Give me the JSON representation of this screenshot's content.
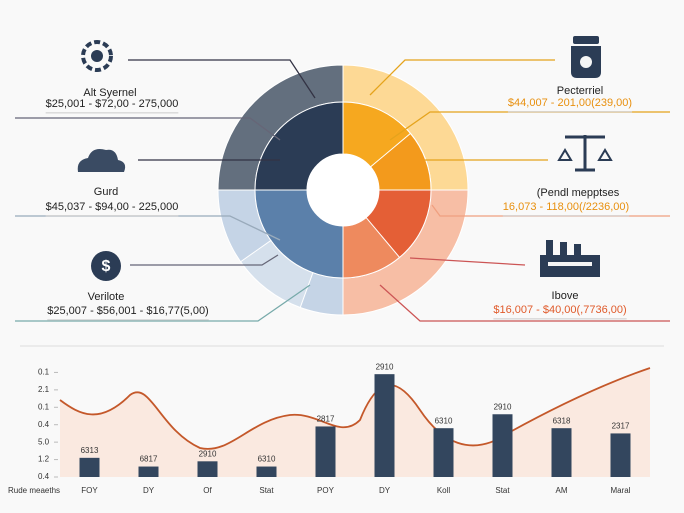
{
  "callouts": [
    {
      "label": "Alt Syernel",
      "range": "$25,001 - $72,00 - 275,000"
    },
    {
      "label": "Gurd",
      "range": "$45,037 - $94,00 - 225,000"
    },
    {
      "label": "Verilote",
      "range": "$25,007 - $56,001 - $16,77(5,00)"
    },
    {
      "label": "Pecterriel",
      "range": "$44,007 - 201,00(239,00)"
    },
    {
      "label": "(Pendl mepptses",
      "range": "16,073 - 118,00(/2236,00)"
    },
    {
      "label": "Ibove",
      "range": "$16,007 - $40,00(,7736,00)"
    }
  ],
  "chart_data": {
    "type": "bar",
    "x_label": "Rude meaeths",
    "categories": [
      "FOY",
      "DY",
      "Of",
      "Stat",
      "POY",
      "DY",
      "Koll",
      "Stat",
      "AM",
      "Maral"
    ],
    "values": [
      1.1,
      0.6,
      0.9,
      0.6,
      2.9,
      5.9,
      2.8,
      3.6,
      2.8,
      2.5
    ],
    "value_labels": [
      "6313",
      "6817",
      "2910",
      "6310",
      "2817",
      "2910",
      "6310",
      "2910",
      "6318",
      "2317"
    ],
    "color": "#33465e",
    "ylim": [
      0,
      7
    ],
    "yticks": [
      {
        "value": 0,
        "label": "0.4"
      },
      {
        "value": 1,
        "label": "1.2"
      },
      {
        "value": 2,
        "label": "5.0"
      },
      {
        "value": 3,
        "label": "0.4"
      },
      {
        "value": 4,
        "label": "0.1"
      },
      {
        "value": 5,
        "label": "2.1"
      },
      {
        "value": 6,
        "label": "0.1"
      }
    ]
  }
}
